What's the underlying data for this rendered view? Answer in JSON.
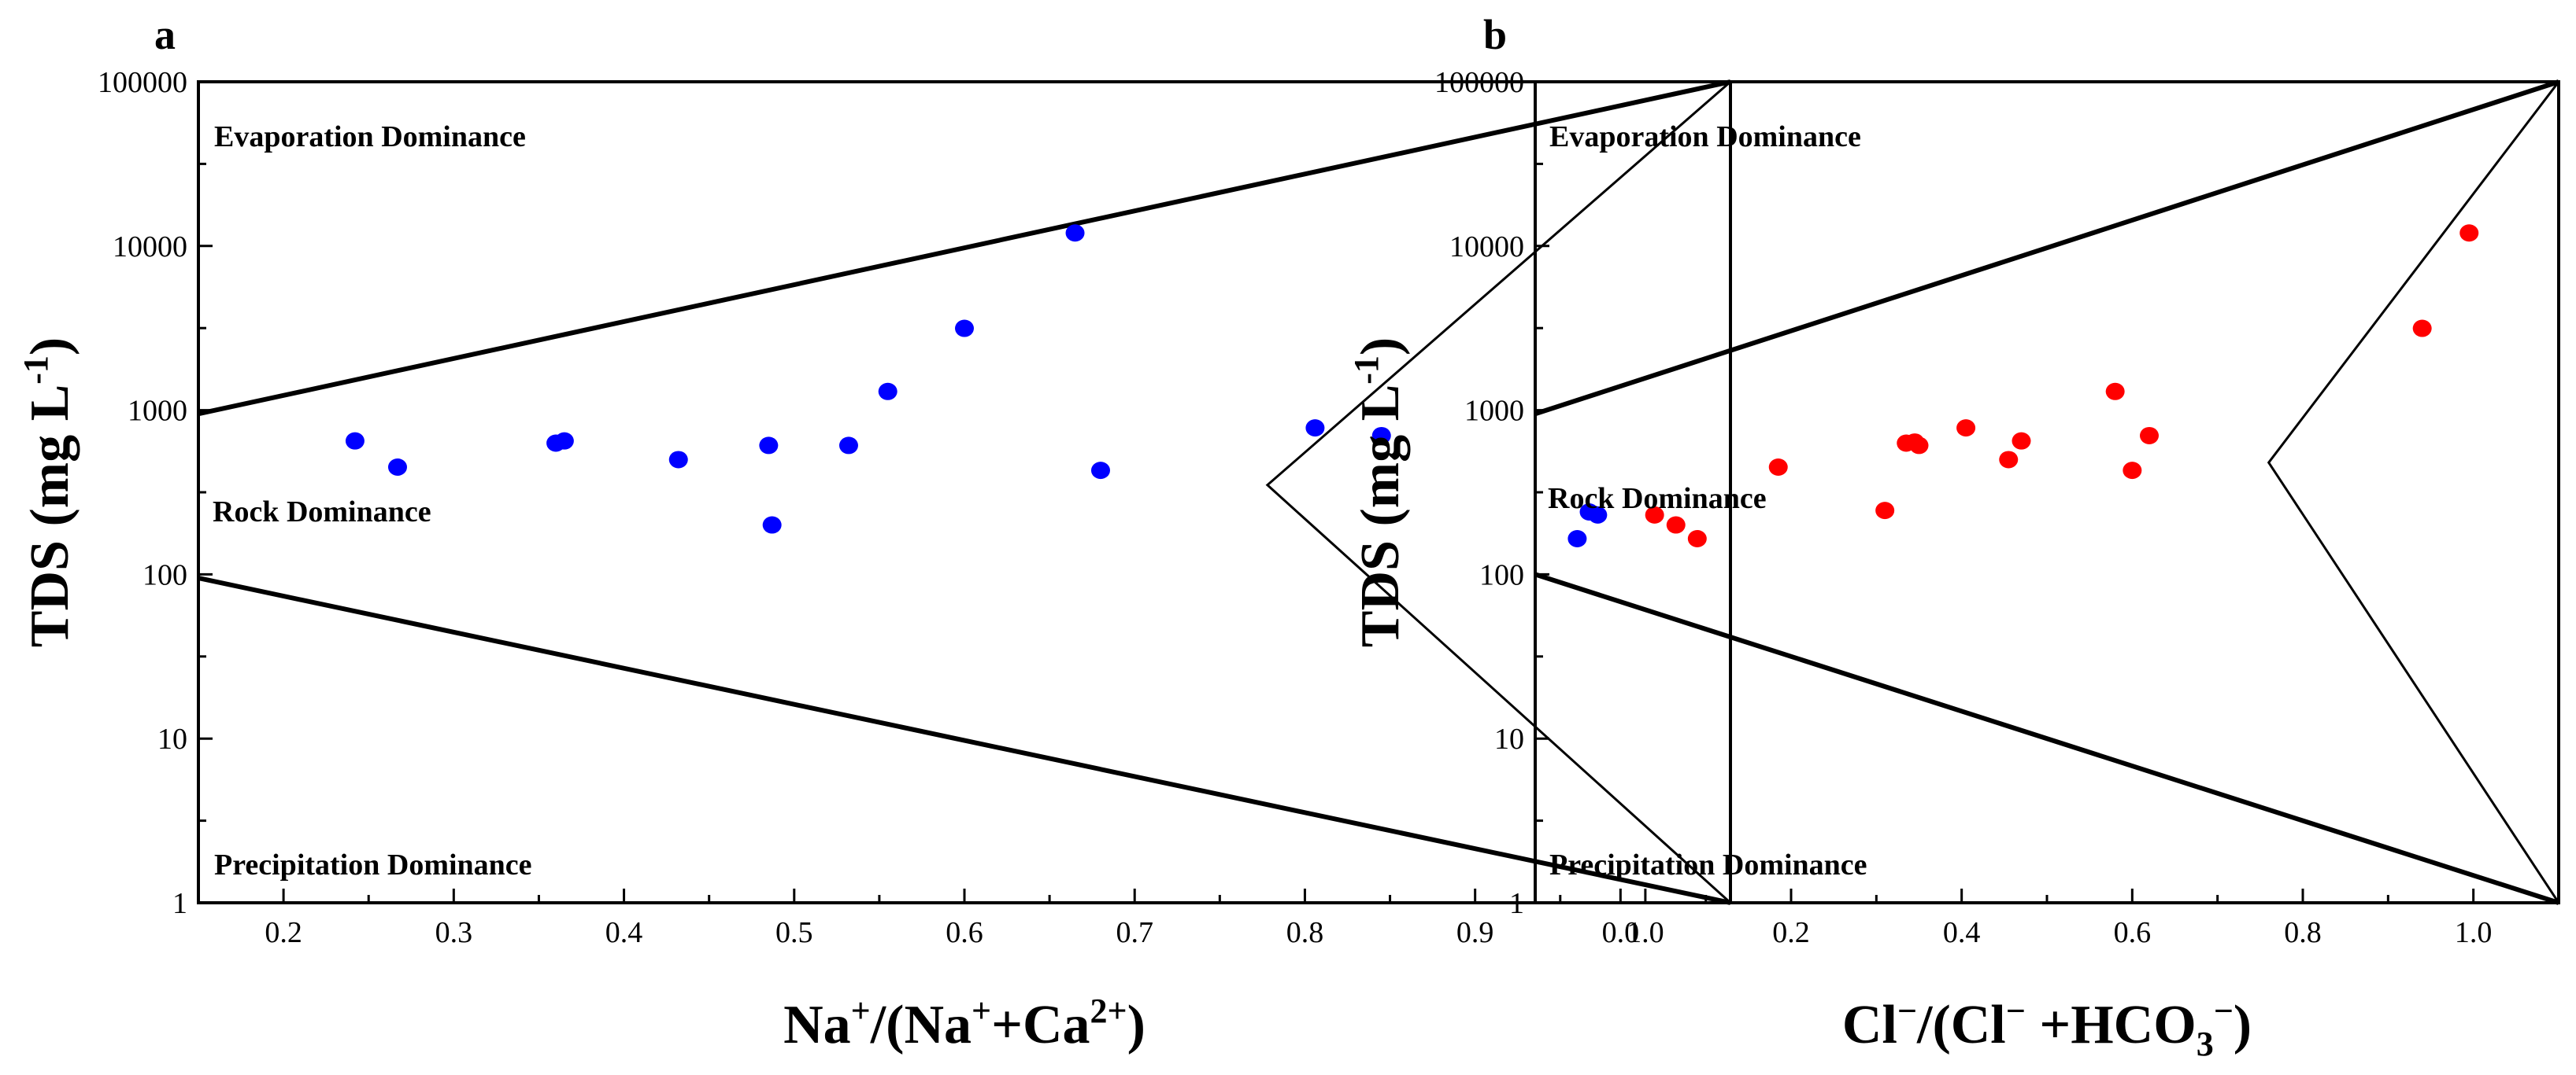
{
  "chart_data": [
    {
      "type": "scatter",
      "panel_label": "a",
      "xlabel": "Na⁺/(Na⁺+Ca²⁺)",
      "ylabel": "TDS (mg L⁻¹)",
      "xlim": [
        0.15,
        1.05
      ],
      "ylim": [
        1,
        100000
      ],
      "yscale": "log",
      "x_ticks": [
        0.2,
        0.3,
        0.4,
        0.5,
        0.6,
        0.7,
        0.8,
        0.9,
        1.0
      ],
      "x_tick_labels": [
        "0.2",
        "0.3",
        "0.4",
        "0.5",
        "0.6",
        "0.7",
        "0.8",
        "0.9",
        "1.0"
      ],
      "y_ticks": [
        1,
        10,
        100,
        1000,
        10000,
        100000
      ],
      "y_tick_labels": [
        "1",
        "10",
        "100",
        "1000",
        "10000",
        "100000"
      ],
      "region_labels": {
        "top": "Evaporation Dominance",
        "middle": "Rock Dominance",
        "bottom": "Precipitation Dominance"
      },
      "boundary_lines": {
        "upper": [
          [
            0.15,
            950
          ],
          [
            1.05,
            100000
          ]
        ],
        "lower": [
          [
            0.15,
            95
          ],
          [
            1.05,
            1
          ]
        ],
        "inner": [
          [
            1.05,
            100000
          ],
          [
            0.778,
            350
          ],
          [
            1.05,
            1
          ]
        ]
      },
      "series": [
        {
          "name": "samples",
          "color": "#0000ff",
          "x": [
            0.242,
            0.267,
            0.36,
            0.365,
            0.432,
            0.485,
            0.487,
            0.532,
            0.555,
            0.6,
            0.665,
            0.68,
            0.806,
            0.845,
            0.96,
            0.967,
            0.972
          ],
          "y": [
            650,
            450,
            630,
            650,
            500,
            610,
            200,
            610,
            1300,
            3150,
            12000,
            430,
            780,
            700,
            165,
            240,
            230
          ]
        }
      ]
    },
    {
      "type": "scatter",
      "panel_label": "b",
      "xlabel": "Cl⁻/(Cl⁻+HCO₃⁻)",
      "ylabel": "TDS (mg L⁻¹)",
      "xlim": [
        -0.1,
        1.1
      ],
      "ylim": [
        1,
        100000
      ],
      "yscale": "log",
      "x_ticks": [
        0.0,
        0.2,
        0.4,
        0.6,
        0.8,
        1.0
      ],
      "x_tick_labels": [
        "0.0",
        "0.2",
        "0.4",
        "0.6",
        "0.8",
        "1.0"
      ],
      "y_ticks": [
        1,
        10,
        100,
        1000,
        10000,
        100000
      ],
      "y_tick_labels": [
        "1",
        "10",
        "100",
        "1000",
        "10000",
        "100000"
      ],
      "region_labels": {
        "top": "Evaporation Dominance",
        "middle": "Rock Dominance",
        "bottom": "Precipitation Dominance"
      },
      "boundary_lines": {
        "upper": [
          [
            -0.1,
            950
          ],
          [
            1.1,
            100000
          ]
        ],
        "lower": [
          [
            -0.1,
            100
          ],
          [
            1.1,
            1
          ]
        ],
        "inner": [
          [
            1.1,
            100000
          ],
          [
            0.76,
            480
          ],
          [
            1.1,
            1
          ]
        ]
      },
      "series": [
        {
          "name": "samples",
          "color": "#ff0000",
          "x": [
            0.04,
            0.065,
            0.09,
            0.185,
            0.31,
            0.335,
            0.345,
            0.35,
            0.405,
            0.455,
            0.47,
            0.58,
            0.6,
            0.62,
            0.94,
            0.995
          ],
          "y": [
            230,
            200,
            165,
            450,
            245,
            630,
            640,
            610,
            780,
            500,
            650,
            1300,
            430,
            700,
            3150,
            12000
          ]
        }
      ]
    }
  ]
}
